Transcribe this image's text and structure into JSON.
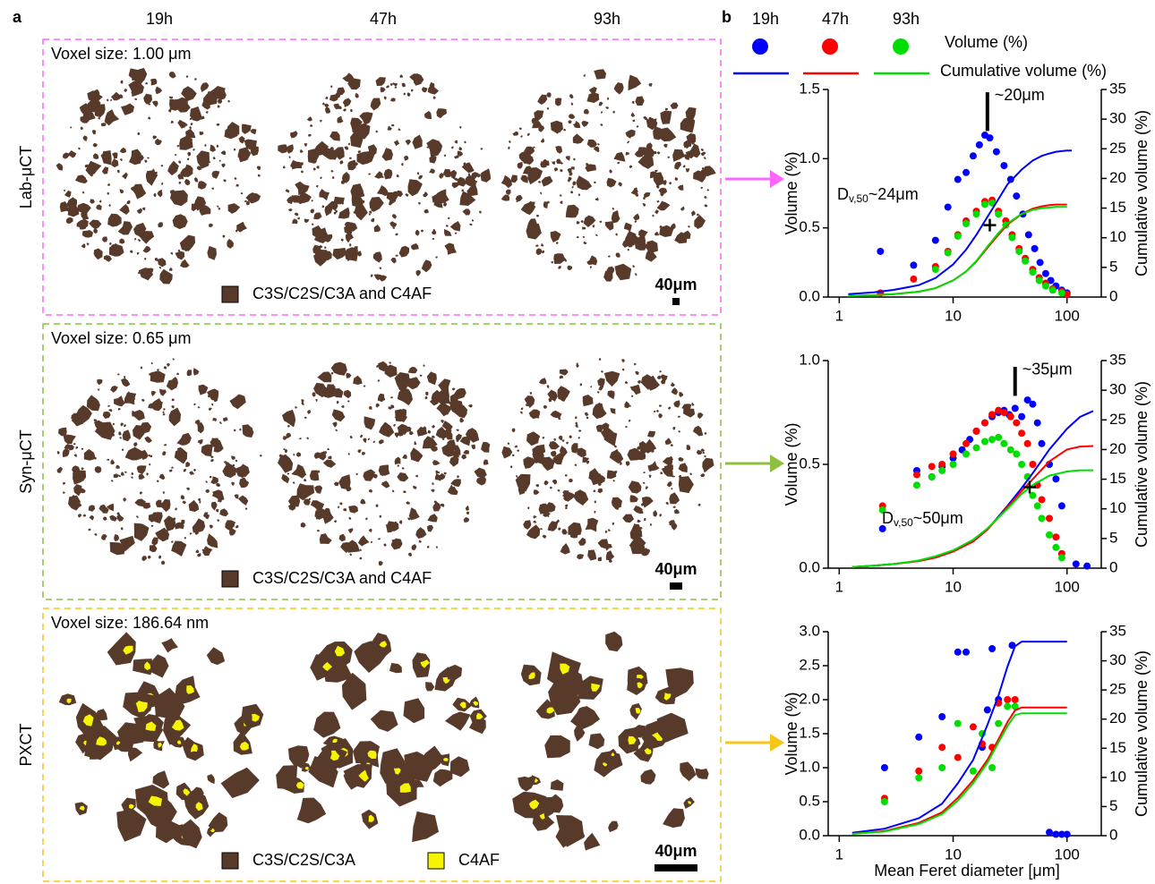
{
  "panel_a": {
    "label": "a",
    "columns": [
      "19h",
      "47h",
      "93h"
    ],
    "rows": [
      {
        "label": "Lab-μCT",
        "voxel": "Voxel size: 1.00 μm",
        "legend": [
          "C3S/C2S/C3A and C4AF"
        ],
        "scale_bar": "40μm",
        "frame_color": "#ff66ff"
      },
      {
        "label": "Syn-μCT",
        "voxel": "Voxel size: 0.65 μm",
        "legend": [
          "C3S/C2S/C3A and C4AF"
        ],
        "scale_bar": "40μm",
        "frame_color": "#8fbf3f"
      },
      {
        "label": "PXCT",
        "voxel": "Voxel size: 186.64 nm",
        "legend": [
          "C3S/C2S/C3A",
          "C4AF"
        ],
        "scale_bar": "40μm",
        "frame_color": "#f5c518"
      }
    ]
  },
  "panel_b": {
    "label": "b"
  },
  "legend": {
    "series": [
      {
        "name": "19h",
        "color": "#0000ff"
      },
      {
        "name": "47h",
        "color": "#ff0000"
      },
      {
        "name": "93h",
        "color": "#00dd00"
      }
    ],
    "rows": [
      "Volume (%)",
      "Cumulative volume (%)"
    ]
  },
  "chart_data": [
    {
      "type": "scatter",
      "xscale": "log",
      "xlim": [
        0.8,
        200
      ],
      "xticks": [
        1,
        10,
        100
      ],
      "ylim": [
        0,
        1.5
      ],
      "yticks": [
        {
          "value": 0,
          "label": "0.0"
        },
        0.5,
        {
          "value": 1,
          "label": "1.0"
        },
        1.5
      ],
      "y2lim": [
        0,
        35
      ],
      "y2ticks": [
        0,
        5,
        10,
        15,
        20,
        25,
        30,
        35
      ],
      "ylabel": "Volume (%)",
      "y2label": "Cumulative volume (%)",
      "annotation": "~20μm",
      "peak_marker": {
        "x": 20,
        "ymin": 1.2,
        "ymax": 1.48
      },
      "dv50_label": {
        "prefix": "D",
        "sub": "v,50",
        "suffix": "~24μm"
      },
      "dv50": {
        "x": 21,
        "y": 0.52
      },
      "series": [
        {
          "type": "scatter",
          "color": "#0000ff",
          "x": [
            2.3,
            4.5,
            7,
            9,
            11,
            13,
            15,
            17,
            19,
            21,
            24,
            28,
            32,
            36,
            41,
            46,
            52,
            58,
            65,
            72,
            80,
            90,
            100
          ],
          "values": [
            0.33,
            0.23,
            0.41,
            0.65,
            0.85,
            0.9,
            1.02,
            1.1,
            1.17,
            1.15,
            1.05,
            0.95,
            0.85,
            0.73,
            0.6,
            0.45,
            0.35,
            0.25,
            0.17,
            0.12,
            0.08,
            0.05,
            0.03
          ]
        },
        {
          "type": "scatter",
          "color": "#ff0000",
          "x": [
            2.3,
            4.5,
            7,
            9,
            11,
            13,
            16,
            19,
            22,
            25,
            29,
            33,
            38,
            43,
            50,
            57,
            65,
            75,
            90,
            100
          ],
          "values": [
            0.03,
            0.13,
            0.22,
            0.33,
            0.45,
            0.55,
            0.62,
            0.69,
            0.7,
            0.62,
            0.55,
            0.45,
            0.35,
            0.28,
            0.2,
            0.14,
            0.1,
            0.06,
            0.04,
            0.02
          ]
        },
        {
          "type": "scatter",
          "color": "#00dd00",
          "x": [
            7,
            9,
            11,
            13,
            16,
            19,
            22,
            25,
            29,
            33,
            38,
            43,
            50,
            57,
            65,
            75,
            90
          ],
          "values": [
            0.2,
            0.32,
            0.44,
            0.53,
            0.6,
            0.67,
            0.68,
            0.6,
            0.52,
            0.43,
            0.33,
            0.26,
            0.18,
            0.12,
            0.08,
            0.05,
            0.03
          ]
        },
        {
          "type": "line",
          "axis": "y2",
          "color": "#0000ff",
          "x": [
            1.2,
            2,
            3,
            5,
            7,
            10,
            13,
            16,
            20,
            25,
            30,
            40,
            50,
            60,
            70,
            80,
            90,
            100,
            110
          ],
          "values": [
            0.5,
            0.8,
            1.2,
            2,
            3.2,
            5.5,
            8,
            10.5,
            13.5,
            16.5,
            19,
            21.5,
            23,
            23.8,
            24.2,
            24.5,
            24.6,
            24.7,
            24.7
          ]
        },
        {
          "type": "line",
          "axis": "y2",
          "color": "#ff0000",
          "x": [
            1.2,
            2,
            3,
            5,
            7,
            10,
            13,
            16,
            20,
            25,
            30,
            40,
            50,
            60,
            70,
            80,
            90,
            100
          ],
          "values": [
            0.2,
            0.3,
            0.5,
            0.9,
            1.5,
            2.8,
            4.3,
            6,
            8.3,
            10.5,
            12.2,
            14,
            14.9,
            15.3,
            15.5,
            15.6,
            15.6,
            15.6
          ]
        },
        {
          "type": "line",
          "axis": "y2",
          "color": "#00dd00",
          "x": [
            1.2,
            2,
            3,
            5,
            7,
            10,
            13,
            16,
            20,
            25,
            30,
            40,
            50,
            60,
            70,
            80,
            90,
            100
          ],
          "values": [
            0.2,
            0.3,
            0.5,
            0.9,
            1.5,
            2.8,
            4.3,
            6.1,
            8.5,
            10.8,
            12.4,
            14,
            14.7,
            15,
            15.1,
            15.2,
            15.2,
            15.2
          ]
        }
      ]
    },
    {
      "type": "scatter",
      "xscale": "log",
      "xlim": [
        0.8,
        200
      ],
      "xticks": [
        1,
        10,
        100
      ],
      "ylim": [
        0,
        1
      ],
      "yticks": [
        {
          "value": 0,
          "label": "0.0"
        },
        0.5,
        {
          "value": 1,
          "label": "1.0"
        }
      ],
      "y2lim": [
        0,
        35
      ],
      "y2ticks": [
        0,
        5,
        10,
        15,
        20,
        25,
        30,
        35
      ],
      "ylabel": "Volume (%)",
      "y2label": "Cumulative volume (%)",
      "annotation": "~35μm",
      "peak_marker": {
        "x": 35,
        "ymin": 0.83,
        "ymax": 0.97
      },
      "dv50_label": {
        "prefix": "D",
        "sub": "v,50",
        "suffix": "~50μm"
      },
      "dv50": {
        "x": 47,
        "y": 0.39
      },
      "series": [
        {
          "type": "scatter",
          "color": "#0000ff",
          "x": [
            2.4,
            4.8,
            6.5,
            8,
            10,
            12,
            14,
            16,
            19,
            22,
            25,
            28,
            31,
            35,
            40,
            45,
            50,
            55,
            60,
            70,
            80,
            90,
            120,
            150
          ],
          "values": [
            0.19,
            0.47,
            0.44,
            0.49,
            0.53,
            0.57,
            0.62,
            0.66,
            0.7,
            0.73,
            0.75,
            0.76,
            0.74,
            0.77,
            0.73,
            0.81,
            0.79,
            0.7,
            0.6,
            0.5,
            0.43,
            0.3,
            0.02,
            0.01
          ]
        },
        {
          "type": "scatter",
          "color": "#ff0000",
          "x": [
            2.4,
            4.8,
            6.5,
            8,
            10,
            13,
            16,
            19,
            22,
            25,
            28,
            32,
            36,
            40,
            45,
            50,
            55,
            60,
            70,
            80,
            90
          ],
          "values": [
            0.3,
            0.45,
            0.49,
            0.5,
            0.55,
            0.6,
            0.66,
            0.7,
            0.74,
            0.76,
            0.75,
            0.73,
            0.7,
            0.65,
            0.6,
            0.5,
            0.4,
            0.33,
            0.24,
            0.15,
            0.07
          ]
        },
        {
          "type": "scatter",
          "color": "#00dd00",
          "x": [
            2.4,
            4.8,
            6.5,
            8,
            10,
            13,
            16,
            19,
            22,
            25,
            28,
            32,
            36,
            40,
            45,
            50,
            55,
            60,
            70,
            80,
            90
          ],
          "values": [
            0.28,
            0.4,
            0.44,
            0.47,
            0.5,
            0.55,
            0.58,
            0.61,
            0.62,
            0.63,
            0.6,
            0.57,
            0.55,
            0.5,
            0.44,
            0.35,
            0.3,
            0.24,
            0.16,
            0.1,
            0.05
          ]
        },
        {
          "type": "line",
          "axis": "y2",
          "color": "#0000ff",
          "x": [
            1.3,
            2,
            3,
            5,
            7,
            10,
            15,
            20,
            30,
            40,
            50,
            70,
            100,
            130,
            170
          ],
          "values": [
            0.2,
            0.4,
            0.7,
            1.2,
            1.8,
            2.8,
            4.5,
            6.5,
            10.5,
            13.5,
            16,
            20,
            23.5,
            25.5,
            26.5
          ]
        },
        {
          "type": "line",
          "axis": "y2",
          "color": "#ff0000",
          "x": [
            1.3,
            2,
            3,
            5,
            7,
            10,
            15,
            20,
            30,
            40,
            50,
            70,
            100,
            130,
            170
          ],
          "values": [
            0.2,
            0.4,
            0.7,
            1.2,
            1.8,
            2.8,
            4.5,
            6.5,
            10.3,
            13,
            15,
            18,
            20,
            20.5,
            20.6
          ]
        },
        {
          "type": "line",
          "axis": "y2",
          "color": "#00dd00",
          "x": [
            1.3,
            2,
            3,
            5,
            7,
            10,
            15,
            20,
            30,
            40,
            50,
            70,
            100,
            130,
            170
          ],
          "values": [
            0.2,
            0.4,
            0.7,
            1.3,
            2,
            3,
            4.8,
            6.7,
            10,
            12.5,
            14,
            15.6,
            16.3,
            16.5,
            16.5
          ]
        }
      ]
    },
    {
      "type": "scatter",
      "xscale": "log",
      "xlim": [
        0.8,
        200
      ],
      "xticks": [
        1,
        10,
        100
      ],
      "ylim": [
        0,
        3
      ],
      "yticks": [
        {
          "value": 0,
          "label": "0.0"
        },
        0.5,
        {
          "value": 1,
          "label": "1.0"
        },
        1.5,
        {
          "value": 2,
          "label": "2.0"
        },
        2.5,
        {
          "value": 3,
          "label": "3.0"
        }
      ],
      "y2lim": [
        0,
        35
      ],
      "y2ticks": [
        0,
        5,
        10,
        15,
        20,
        25,
        30,
        35
      ],
      "ylabel": "Volume (%)",
      "y2label": "Cumulative volume (%)",
      "xlabel": "Mean Feret diameter [μm]",
      "series": [
        {
          "type": "scatter",
          "color": "#0000ff",
          "x": [
            2.5,
            5,
            8,
            11,
            13,
            18,
            20,
            22,
            25,
            33,
            70,
            80,
            90,
            100
          ],
          "values": [
            1.0,
            1.45,
            1.75,
            2.7,
            2.7,
            1.3,
            1.85,
            2.75,
            2.0,
            2.8,
            0.05,
            0.02,
            0.02,
            0.02
          ]
        },
        {
          "type": "scatter",
          "color": "#ff0000",
          "x": [
            2.5,
            5,
            8,
            11,
            15,
            18,
            22,
            25,
            30,
            35
          ],
          "values": [
            0.55,
            0.95,
            1.3,
            1.15,
            1.6,
            1.35,
            1.3,
            1.95,
            2.0,
            2.0
          ]
        },
        {
          "type": "scatter",
          "color": "#00dd00",
          "x": [
            2.5,
            5,
            8,
            11,
            15,
            18,
            22,
            25,
            30,
            35
          ],
          "values": [
            0.5,
            0.85,
            1.0,
            1.65,
            0.95,
            1.5,
            1.0,
            1.65,
            1.9,
            1.9
          ]
        },
        {
          "type": "line",
          "axis": "y2",
          "color": "#0000ff",
          "x": [
            1.3,
            2.5,
            5,
            8,
            11,
            15,
            20,
            25,
            30,
            35,
            40,
            100
          ],
          "values": [
            0.5,
            1.2,
            3,
            5.5,
            9,
            13,
            19,
            24,
            29,
            32.5,
            33.3,
            33.3
          ]
        },
        {
          "type": "line",
          "axis": "y2",
          "color": "#ff0000",
          "x": [
            1.3,
            2.5,
            5,
            8,
            11,
            15,
            20,
            25,
            30,
            35,
            40,
            100
          ],
          "values": [
            0.3,
            0.8,
            2.2,
            4,
            6.5,
            9.5,
            13,
            16.5,
            19.5,
            21.5,
            22,
            22
          ]
        },
        {
          "type": "line",
          "axis": "y2",
          "color": "#00dd00",
          "x": [
            1.3,
            2.5,
            5,
            8,
            11,
            15,
            20,
            25,
            30,
            35,
            40,
            100
          ],
          "values": [
            0.3,
            0.7,
            2,
            3.7,
            6,
            9,
            12.5,
            16,
            18.8,
            20.7,
            21,
            21
          ]
        }
      ]
    }
  ]
}
